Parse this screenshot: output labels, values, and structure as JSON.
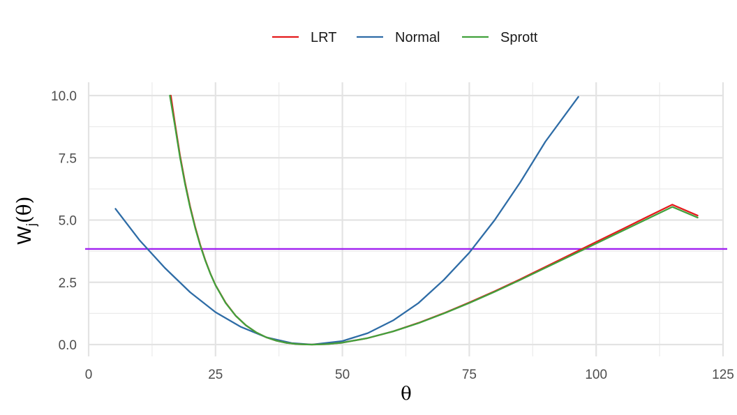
{
  "chart_data": {
    "type": "line",
    "title": "",
    "xlabel": "θ",
    "ylabel": {
      "base": "W",
      "sub": "j",
      "arg": "(θ)"
    },
    "xlim": [
      0,
      125
    ],
    "ylim": [
      0,
      10
    ],
    "x_ticks": [
      {
        "value": 0,
        "label": "0"
      },
      {
        "value": 25,
        "label": "25"
      },
      {
        "value": 50,
        "label": "50"
      },
      {
        "value": 75,
        "label": "75"
      },
      {
        "value": 100,
        "label": "100"
      },
      {
        "value": 125,
        "label": "125"
      }
    ],
    "y_ticks": [
      {
        "value": 0,
        "label": "0.0"
      },
      {
        "value": 2.5,
        "label": "2.5"
      },
      {
        "value": 5,
        "label": "5.0"
      },
      {
        "value": 7.5,
        "label": "7.5"
      },
      {
        "value": 10,
        "label": "10.0"
      }
    ],
    "grid": true,
    "legend_position": "top",
    "hline": {
      "y": 3.84,
      "color": "#a020f0"
    },
    "series": [
      {
        "name": "LRT",
        "color": "#e41a1c",
        "points": [
          [
            16.2,
            10.0
          ],
          [
            17,
            8.9
          ],
          [
            18,
            7.6
          ],
          [
            19,
            6.5
          ],
          [
            20,
            5.55
          ],
          [
            21,
            4.72
          ],
          [
            22,
            4.0
          ],
          [
            23,
            3.38
          ],
          [
            24,
            2.85
          ],
          [
            25,
            2.39
          ],
          [
            27,
            1.68
          ],
          [
            29,
            1.15
          ],
          [
            31,
            0.77
          ],
          [
            33,
            0.49
          ],
          [
            35,
            0.29
          ],
          [
            37,
            0.155
          ],
          [
            39,
            0.068
          ],
          [
            41,
            0.02
          ],
          [
            43,
            0.002
          ],
          [
            44,
            0.0
          ],
          [
            45,
            0.002
          ],
          [
            47,
            0.018
          ],
          [
            50,
            0.075
          ],
          [
            55,
            0.26
          ],
          [
            60,
            0.53
          ],
          [
            65,
            0.87
          ],
          [
            70,
            1.26
          ],
          [
            75,
            1.69
          ],
          [
            80,
            2.14
          ],
          [
            85,
            2.62
          ],
          [
            90,
            3.12
          ],
          [
            95,
            3.62
          ],
          [
            100,
            4.12
          ],
          [
            105,
            4.62
          ],
          [
            110,
            5.12
          ],
          [
            115,
            5.62
          ],
          [
            120,
            5.18
          ]
        ]
      },
      {
        "name": "Normal",
        "color": "#2e6ca6",
        "points": [
          [
            5.3,
            5.45
          ],
          [
            10,
            4.2
          ],
          [
            15,
            3.08
          ],
          [
            20,
            2.1
          ],
          [
            25,
            1.3
          ],
          [
            30,
            0.71
          ],
          [
            35,
            0.29
          ],
          [
            40,
            0.06
          ],
          [
            44,
            0.0
          ],
          [
            50,
            0.14
          ],
          [
            55,
            0.46
          ],
          [
            60,
            0.97
          ],
          [
            65,
            1.67
          ],
          [
            70,
            2.6
          ],
          [
            75,
            3.69
          ],
          [
            80,
            5.0
          ],
          [
            85,
            6.5
          ],
          [
            90,
            8.15
          ],
          [
            96.5,
            9.95
          ]
        ]
      },
      {
        "name": "Sprott",
        "color": "#41a13c",
        "points": [
          [
            16.0,
            10.0
          ],
          [
            17,
            8.8
          ],
          [
            18,
            7.52
          ],
          [
            19,
            6.44
          ],
          [
            20,
            5.5
          ],
          [
            21,
            4.68
          ],
          [
            22,
            3.97
          ],
          [
            23,
            3.36
          ],
          [
            24,
            2.84
          ],
          [
            25,
            2.38
          ],
          [
            27,
            1.67
          ],
          [
            29,
            1.15
          ],
          [
            31,
            0.77
          ],
          [
            33,
            0.49
          ],
          [
            35,
            0.29
          ],
          [
            37,
            0.155
          ],
          [
            39,
            0.068
          ],
          [
            41,
            0.02
          ],
          [
            43,
            0.002
          ],
          [
            44,
            0.0
          ],
          [
            45,
            0.002
          ],
          [
            47,
            0.018
          ],
          [
            50,
            0.075
          ],
          [
            55,
            0.26
          ],
          [
            60,
            0.53
          ],
          [
            65,
            0.86
          ],
          [
            70,
            1.25
          ],
          [
            75,
            1.67
          ],
          [
            80,
            2.12
          ],
          [
            85,
            2.59
          ],
          [
            90,
            3.08
          ],
          [
            95,
            3.57
          ],
          [
            100,
            4.06
          ],
          [
            105,
            4.55
          ],
          [
            110,
            5.04
          ],
          [
            115,
            5.53
          ],
          [
            120,
            5.1
          ]
        ]
      }
    ]
  }
}
